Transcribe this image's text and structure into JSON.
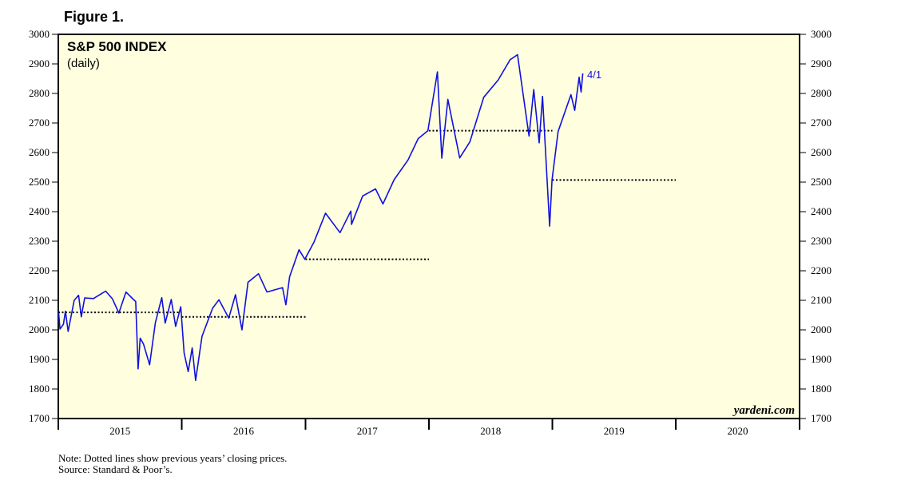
{
  "figure_label": "Figure 1.",
  "note": "Note: Dotted lines show previous years’ closing prices.",
  "source": "Source: Standard & Poor’s.",
  "watermark": "yardeni.com",
  "colors": {
    "series": "#1010e0",
    "plot_bg": "#ffffe0",
    "reference_lines": "#000000"
  },
  "chart_data": {
    "type": "line",
    "title": "S&P 500 INDEX",
    "subtitle": "(daily)",
    "end_label": "4/1",
    "y_ticks": [
      "1700",
      "1800",
      "1900",
      "2000",
      "2100",
      "2200",
      "2300",
      "2400",
      "2500",
      "2600",
      "2700",
      "2800",
      "2900",
      "3000"
    ],
    "ylim": [
      1700,
      3000
    ],
    "xlim": [
      "2015-01-01",
      "2021-01-01"
    ],
    "x_tick_labels": [
      "2015",
      "2016",
      "2017",
      "2018",
      "2019",
      "2020"
    ],
    "grid": false,
    "series": [
      {
        "values": [
          [
            "2015-01-02",
            2058
          ],
          [
            "2015-01-06",
            2003
          ],
          [
            "2015-01-16",
            2019
          ],
          [
            "2015-01-22",
            2063
          ],
          [
            "2015-01-30",
            1995
          ],
          [
            "2015-02-17",
            2100
          ],
          [
            "2015-03-02",
            2117
          ],
          [
            "2015-03-10",
            2044
          ],
          [
            "2015-03-20",
            2108
          ],
          [
            "2015-04-15",
            2106
          ],
          [
            "2015-05-21",
            2131
          ],
          [
            "2015-06-10",
            2105
          ],
          [
            "2015-06-29",
            2057
          ],
          [
            "2015-07-20",
            2128
          ],
          [
            "2015-08-10",
            2104
          ],
          [
            "2015-08-18",
            2096
          ],
          [
            "2015-08-25",
            1868
          ],
          [
            "2015-08-31",
            1972
          ],
          [
            "2015-09-10",
            1952
          ],
          [
            "2015-09-28",
            1882
          ],
          [
            "2015-10-15",
            2024
          ],
          [
            "2015-11-03",
            2109
          ],
          [
            "2015-11-13",
            2023
          ],
          [
            "2015-12-01",
            2103
          ],
          [
            "2015-12-14",
            2012
          ],
          [
            "2015-12-29",
            2078
          ],
          [
            "2016-01-08",
            1922
          ],
          [
            "2016-01-20",
            1859
          ],
          [
            "2016-02-01",
            1939
          ],
          [
            "2016-02-11",
            1829
          ],
          [
            "2016-03-01",
            1978
          ],
          [
            "2016-04-01",
            2073
          ],
          [
            "2016-04-20",
            2102
          ],
          [
            "2016-05-19",
            2040
          ],
          [
            "2016-06-08",
            2119
          ],
          [
            "2016-06-27",
            2000
          ],
          [
            "2016-07-15",
            2161
          ],
          [
            "2016-08-15",
            2190
          ],
          [
            "2016-09-09",
            2128
          ],
          [
            "2016-10-25",
            2143
          ],
          [
            "2016-11-04",
            2085
          ],
          [
            "2016-11-15",
            2180
          ],
          [
            "2016-12-13",
            2271
          ],
          [
            "2016-12-30",
            2239
          ],
          [
            "2017-01-26",
            2297
          ],
          [
            "2017-03-01",
            2395
          ],
          [
            "2017-04-13",
            2329
          ],
          [
            "2017-05-15",
            2402
          ],
          [
            "2017-05-17",
            2357
          ],
          [
            "2017-06-19",
            2453
          ],
          [
            "2017-07-27",
            2477
          ],
          [
            "2017-08-18",
            2426
          ],
          [
            "2017-09-20",
            2508
          ],
          [
            "2017-10-31",
            2575
          ],
          [
            "2017-11-30",
            2647
          ],
          [
            "2017-12-29",
            2674
          ],
          [
            "2018-01-26",
            2873
          ],
          [
            "2018-02-08",
            2581
          ],
          [
            "2018-02-26",
            2780
          ],
          [
            "2018-04-02",
            2582
          ],
          [
            "2018-05-02",
            2636
          ],
          [
            "2018-06-12",
            2787
          ],
          [
            "2018-07-25",
            2846
          ],
          [
            "2018-08-29",
            2914
          ],
          [
            "2018-09-20",
            2931
          ],
          [
            "2018-10-24",
            2656
          ],
          [
            "2018-11-07",
            2813
          ],
          [
            "2018-11-23",
            2633
          ],
          [
            "2018-12-03",
            2790
          ],
          [
            "2018-12-24",
            2351
          ],
          [
            "2018-12-31",
            2507
          ],
          [
            "2019-01-18",
            2671
          ],
          [
            "2019-02-25",
            2796
          ],
          [
            "2019-03-08",
            2743
          ],
          [
            "2019-03-21",
            2855
          ],
          [
            "2019-03-27",
            2805
          ],
          [
            "2019-04-01",
            2868
          ]
        ]
      }
    ],
    "reference_lines": [
      {
        "from": "2015-01-01",
        "to": "2016-01-01",
        "value": 2059
      },
      {
        "from": "2016-01-01",
        "to": "2017-01-01",
        "value": 2044
      },
      {
        "from": "2017-01-01",
        "to": "2018-01-01",
        "value": 2239
      },
      {
        "from": "2018-01-01",
        "to": "2019-01-01",
        "value": 2674
      },
      {
        "from": "2019-01-01",
        "to": "2020-01-01",
        "value": 2507
      }
    ]
  }
}
